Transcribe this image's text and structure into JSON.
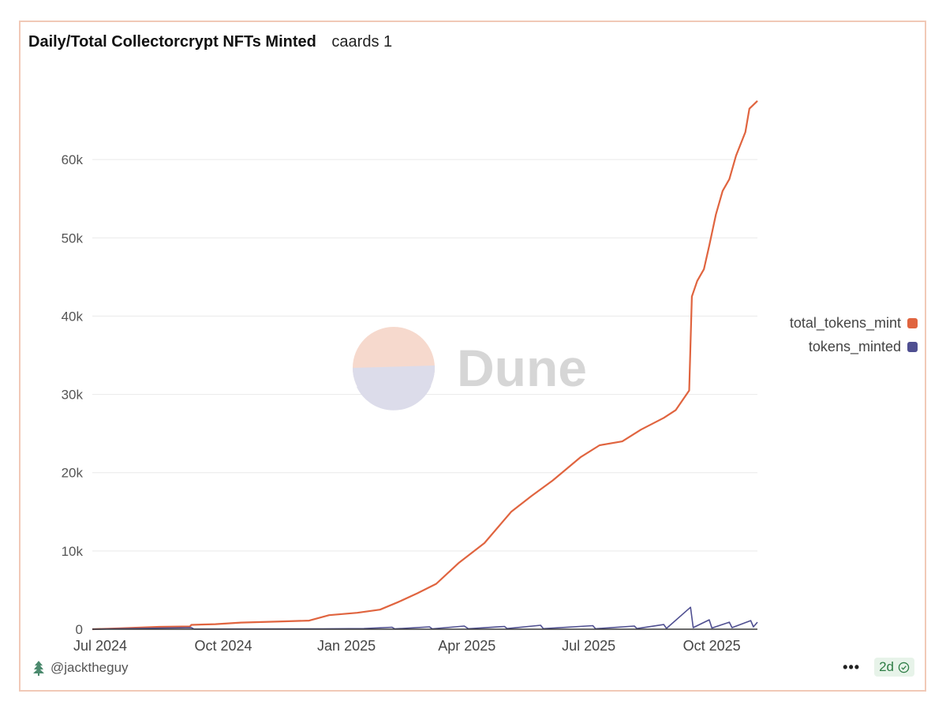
{
  "header": {
    "title": "Daily/Total Collectorcrypt NFTs Minted",
    "subtitle": "caards 1"
  },
  "watermark": {
    "text": "Dune"
  },
  "legend": [
    {
      "label": "total_tokens_mint",
      "color": "#e0643f"
    },
    {
      "label": "tokens_minted",
      "color": "#4f4f91"
    }
  ],
  "footer": {
    "author": "@jacktheguy",
    "more_label": "•••",
    "age_label": "2d"
  },
  "chart_data": {
    "type": "line",
    "title": "Daily/Total Collectorcrypt NFTs Minted",
    "xlabel": "",
    "ylabel": "",
    "ylim": [
      0,
      70000
    ],
    "y_ticks": [
      {
        "value": 0,
        "label": "0"
      },
      {
        "value": 10000,
        "label": "10k"
      },
      {
        "value": 20000,
        "label": "20k"
      },
      {
        "value": 30000,
        "label": "30k"
      },
      {
        "value": 40000,
        "label": "40k"
      },
      {
        "value": 50000,
        "label": "50k"
      },
      {
        "value": 60000,
        "label": "60k"
      }
    ],
    "x_ticks": [
      {
        "label": "Jul 2024",
        "date": "2024-07-01"
      },
      {
        "label": "Oct 2024",
        "date": "2024-10-01"
      },
      {
        "label": "Jan 2025",
        "date": "2025-01-01"
      },
      {
        "label": "Apr 2025",
        "date": "2025-04-01"
      },
      {
        "label": "Jul 2025",
        "date": "2025-07-01"
      },
      {
        "label": "Oct 2025",
        "date": "2025-10-01"
      }
    ],
    "x_range": [
      "2024-07-01",
      "2025-11-10"
    ],
    "grid": true,
    "legend_position": "right",
    "series": [
      {
        "name": "total_tokens_mint",
        "color": "#e0643f",
        "points": [
          [
            "2024-07-01",
            0
          ],
          [
            "2024-07-20",
            100
          ],
          [
            "2024-08-20",
            300
          ],
          [
            "2024-09-12",
            350
          ],
          [
            "2024-09-13",
            550
          ],
          [
            "2024-10-01",
            650
          ],
          [
            "2024-10-20",
            850
          ],
          [
            "2024-11-20",
            1000
          ],
          [
            "2024-12-10",
            1100
          ],
          [
            "2024-12-25",
            1800
          ],
          [
            "2025-01-15",
            2100
          ],
          [
            "2025-02-01",
            2500
          ],
          [
            "2025-02-15",
            3500
          ],
          [
            "2025-03-01",
            4600
          ],
          [
            "2025-03-15",
            5800
          ],
          [
            "2025-04-01",
            8500
          ],
          [
            "2025-04-20",
            11000
          ],
          [
            "2025-05-10",
            15000
          ],
          [
            "2025-05-25",
            17000
          ],
          [
            "2025-06-10",
            19000
          ],
          [
            "2025-07-01",
            22000
          ],
          [
            "2025-07-15",
            23500
          ],
          [
            "2025-08-01",
            24000
          ],
          [
            "2025-08-15",
            25500
          ],
          [
            "2025-09-01",
            27000
          ],
          [
            "2025-09-10",
            28000
          ],
          [
            "2025-09-20",
            30500
          ],
          [
            "2025-09-22",
            42500
          ],
          [
            "2025-09-26",
            44500
          ],
          [
            "2025-10-01",
            46000
          ],
          [
            "2025-10-05",
            49000
          ],
          [
            "2025-10-10",
            53000
          ],
          [
            "2025-10-15",
            56000
          ],
          [
            "2025-10-20",
            57500
          ],
          [
            "2025-10-25",
            60500
          ],
          [
            "2025-11-01",
            63500
          ],
          [
            "2025-11-04",
            66500
          ],
          [
            "2025-11-10",
            67500
          ]
        ]
      },
      {
        "name": "tokens_minted",
        "color": "#4f4f91",
        "points": [
          [
            "2024-07-01",
            0
          ],
          [
            "2024-09-13",
            200
          ],
          [
            "2024-09-15",
            20
          ],
          [
            "2024-12-20",
            50
          ],
          [
            "2025-01-20",
            80
          ],
          [
            "2025-02-10",
            250
          ],
          [
            "2025-02-12",
            40
          ],
          [
            "2025-03-10",
            300
          ],
          [
            "2025-03-12",
            50
          ],
          [
            "2025-04-05",
            400
          ],
          [
            "2025-04-08",
            60
          ],
          [
            "2025-05-05",
            350
          ],
          [
            "2025-05-07",
            80
          ],
          [
            "2025-06-01",
            500
          ],
          [
            "2025-06-03",
            70
          ],
          [
            "2025-07-10",
            450
          ],
          [
            "2025-07-12",
            60
          ],
          [
            "2025-08-10",
            400
          ],
          [
            "2025-08-12",
            80
          ],
          [
            "2025-09-01",
            600
          ],
          [
            "2025-09-03",
            100
          ],
          [
            "2025-09-21",
            2800
          ],
          [
            "2025-09-23",
            200
          ],
          [
            "2025-10-05",
            1200
          ],
          [
            "2025-10-07",
            150
          ],
          [
            "2025-10-20",
            900
          ],
          [
            "2025-10-22",
            200
          ],
          [
            "2025-11-05",
            1100
          ],
          [
            "2025-11-07",
            300
          ],
          [
            "2025-11-10",
            900
          ]
        ]
      }
    ]
  }
}
